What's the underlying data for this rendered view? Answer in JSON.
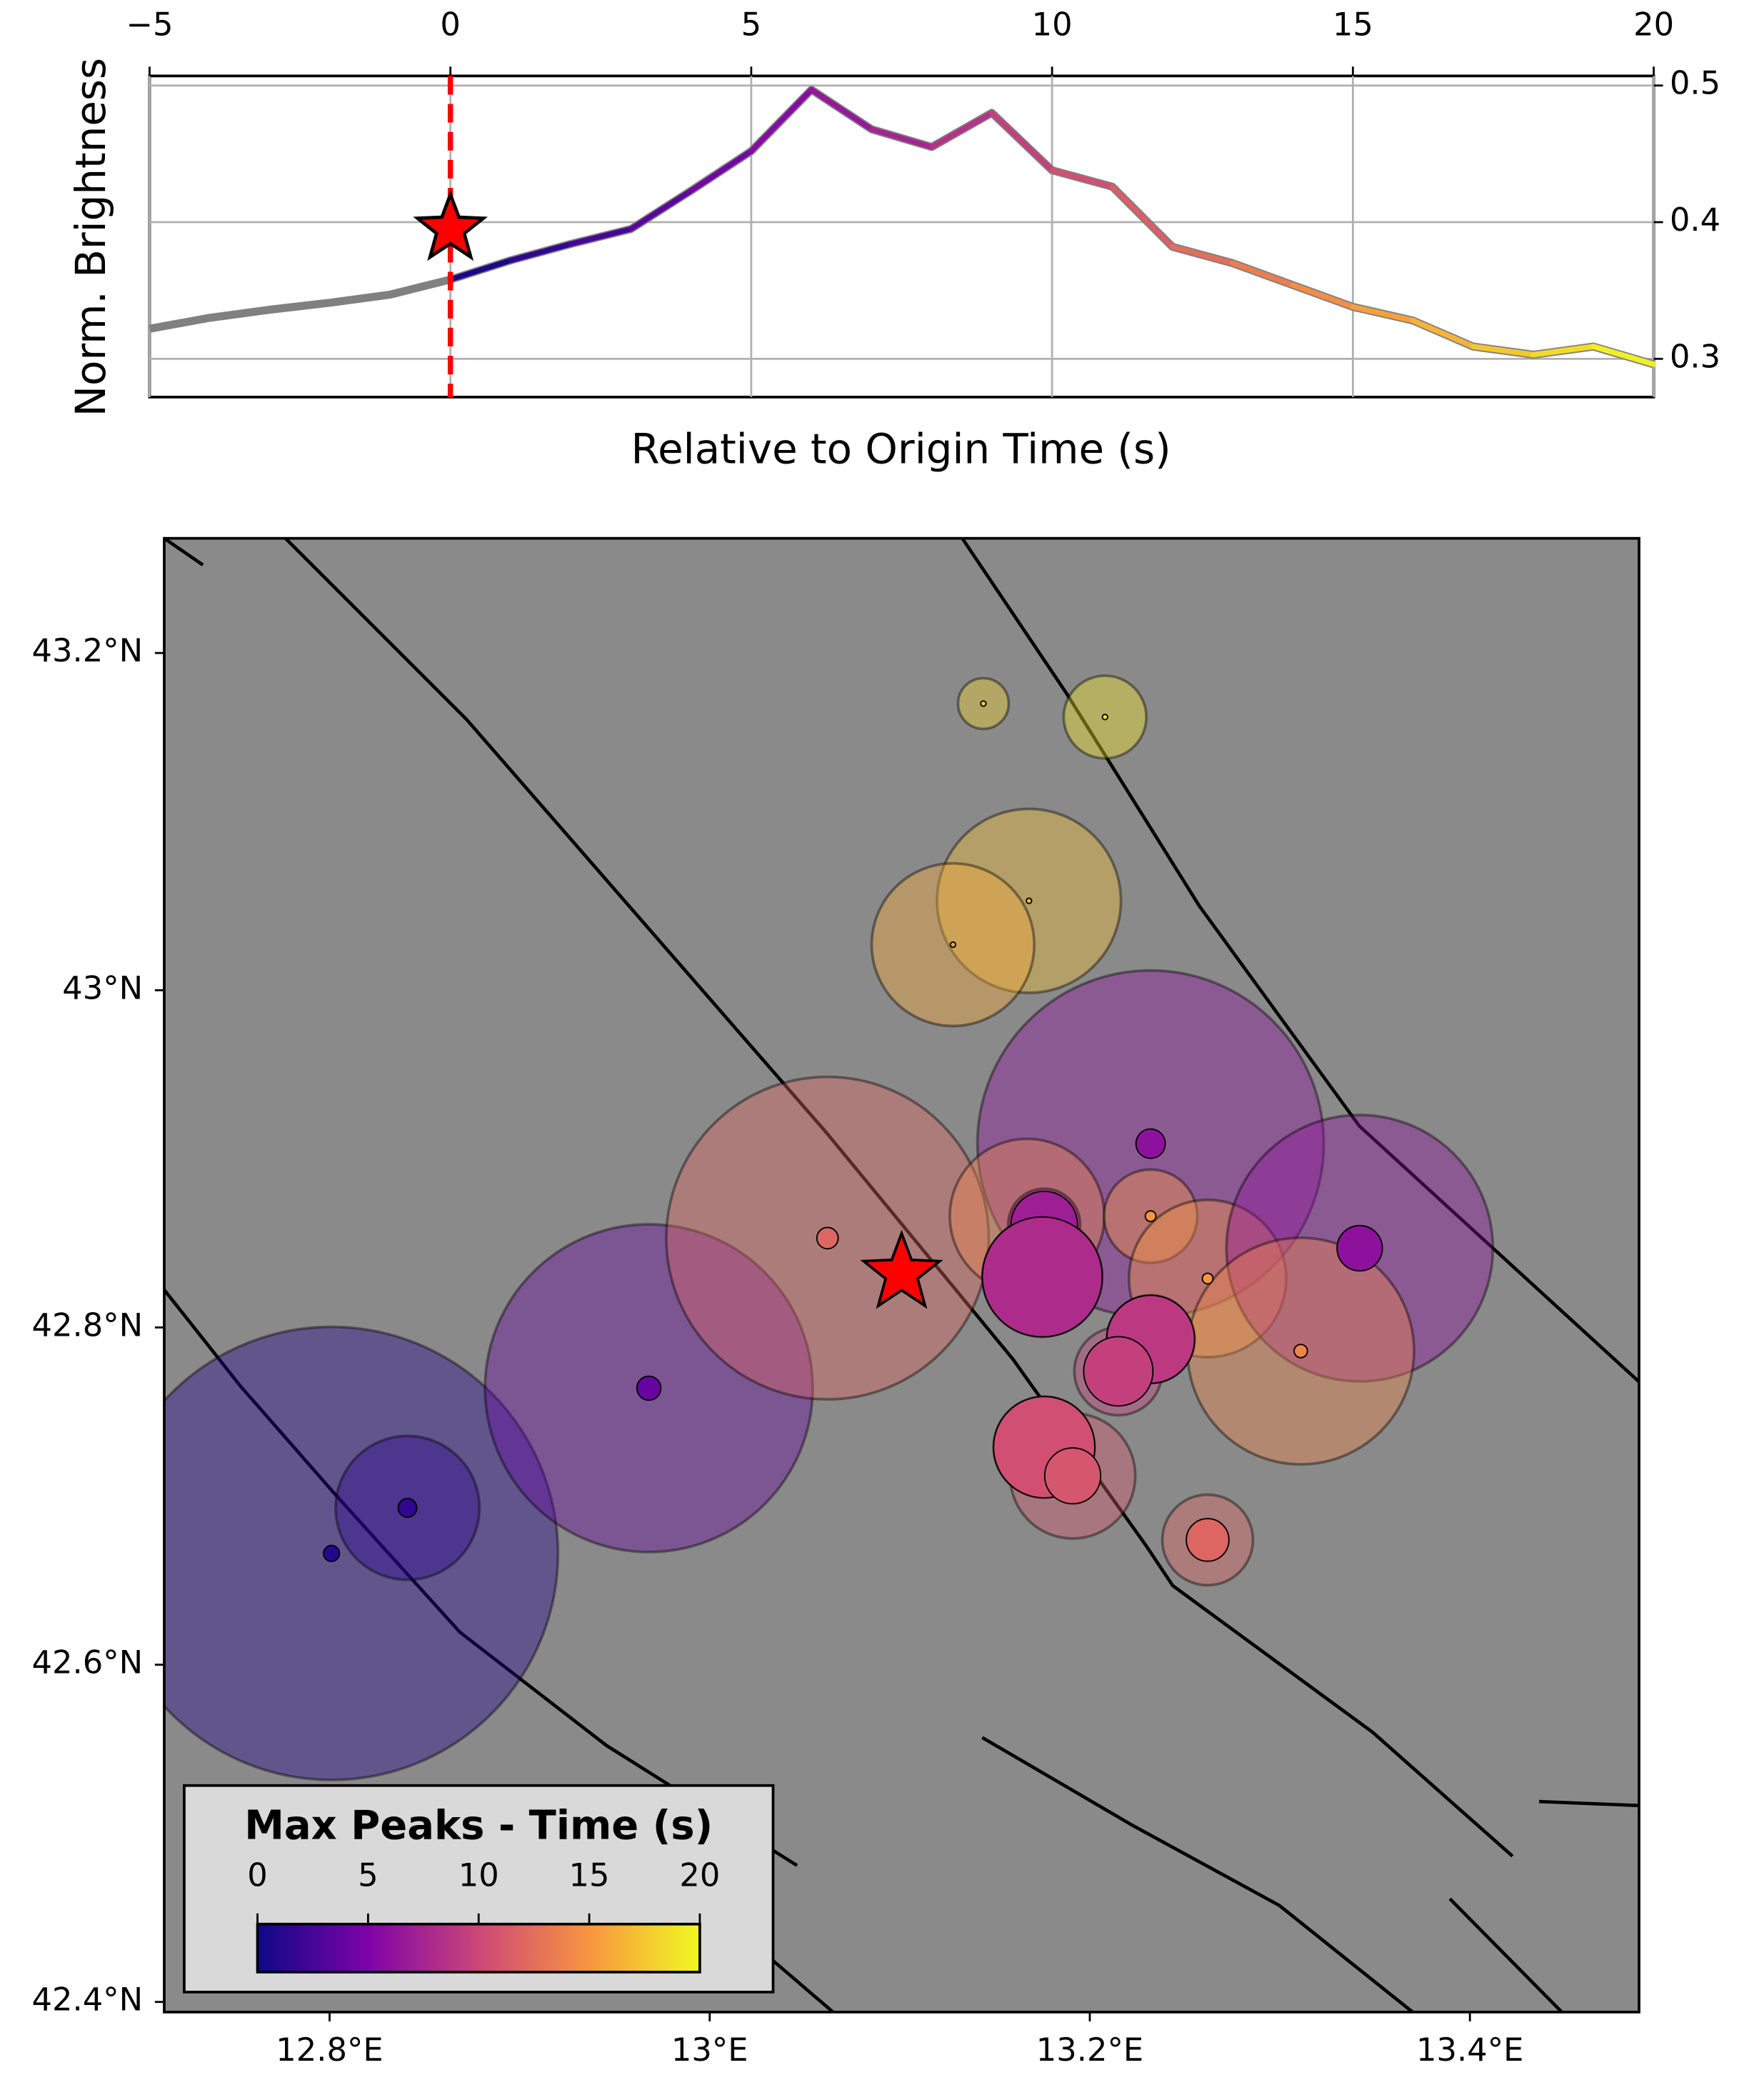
{
  "chart_data": [
    {
      "type": "line",
      "xlabel": "Relative to Origin Time (s)",
      "ylabel": "Norm. Brightness",
      "x": [
        -5,
        -4,
        -3,
        -2,
        -1,
        0,
        1,
        2,
        3,
        4,
        5,
        6,
        7,
        8,
        9,
        10,
        11,
        12,
        13,
        14,
        15,
        16,
        17,
        18,
        19,
        20
      ],
      "values": [
        0.322,
        0.33,
        0.336,
        0.341,
        0.347,
        0.358,
        0.372,
        0.384,
        0.395,
        0.423,
        0.452,
        0.497,
        0.468,
        0.455,
        0.48,
        0.438,
        0.426,
        0.382,
        0.37,
        0.354,
        0.338,
        0.328,
        0.309,
        0.303,
        0.309,
        0.296
      ],
      "color": "#808080",
      "colormap": [
        "#0d0887",
        "#7e03a8",
        "#cc4778",
        "#f89540",
        "#f0f921"
      ],
      "clim": [
        0,
        20
      ],
      "origin": {
        "x": 0,
        "y": 0.395
      },
      "xlim": [
        -5,
        20
      ],
      "xticks": [
        {
          "value": -5,
          "label": "−5"
        },
        0,
        5,
        10,
        15,
        20
      ],
      "ylim": [
        0.272,
        0.507
      ],
      "yticks": [
        0.3,
        0.4,
        0.5
      ],
      "grid": true
    },
    {
      "type": "scatter",
      "colorbar_title": "Max Peaks - Time (s)",
      "colormap": [
        "#0d0887",
        "#7e03a8",
        "#cc4778",
        "#f89540",
        "#f0f921"
      ],
      "clim": [
        0,
        20
      ],
      "cticks": [
        0,
        5,
        10,
        15,
        20
      ],
      "legend": "lower left",
      "lon": [
        12.801,
        12.841,
        12.968,
        13.062,
        13.144,
        13.208,
        13.168,
        13.128,
        13.232,
        13.167,
        13.176,
        13.175,
        13.232,
        13.262,
        13.342,
        13.311,
        13.232,
        13.215,
        13.176,
        13.191,
        13.262
      ],
      "lat": [
        42.666,
        42.693,
        42.764,
        42.853,
        43.17,
        43.162,
        43.053,
        43.027,
        42.909,
        42.866,
        42.861,
        42.83,
        42.866,
        42.829,
        42.847,
        42.786,
        42.793,
        42.774,
        42.729,
        42.712,
        42.674
      ],
      "time": [
        1,
        1.5,
        4,
        12,
        18,
        19,
        17,
        16,
        6,
        14,
        7,
        8,
        15,
        15,
        6,
        14,
        9,
        9.5,
        10.5,
        11,
        12
      ],
      "peak_size": [
        170,
        54,
        123,
        121,
        19,
        31,
        69,
        61,
        130,
        58,
        27,
        45,
        35,
        59,
        100,
        85,
        33,
        33,
        38,
        47,
        34
      ],
      "marker_size": [
        6,
        7,
        9,
        8,
        2,
        2,
        2,
        2,
        11,
        6,
        25,
        45,
        4,
        4,
        17,
        5,
        33,
        26,
        38,
        21,
        16
      ],
      "epicenter": {
        "lon": 13.101,
        "lat": 42.832
      },
      "xlim": [
        12.713,
        13.489
      ],
      "xticks": [
        {
          "value": 12.8,
          "label": "12.8°E"
        },
        {
          "value": 13.0,
          "label": "13°E"
        },
        {
          "value": 13.2,
          "label": "13.2°E"
        },
        {
          "value": 13.4,
          "label": "13.4°E"
        }
      ],
      "ylim": [
        42.394,
        43.268
      ],
      "yticks": [
        {
          "value": 42.4,
          "label": "42.4°N"
        },
        {
          "value": 42.6,
          "label": "42.6°N"
        },
        {
          "value": 42.8,
          "label": "42.8°N"
        },
        {
          "value": 43.0,
          "label": "43°N"
        },
        {
          "value": 43.2,
          "label": "43.2°N"
        }
      ]
    }
  ]
}
